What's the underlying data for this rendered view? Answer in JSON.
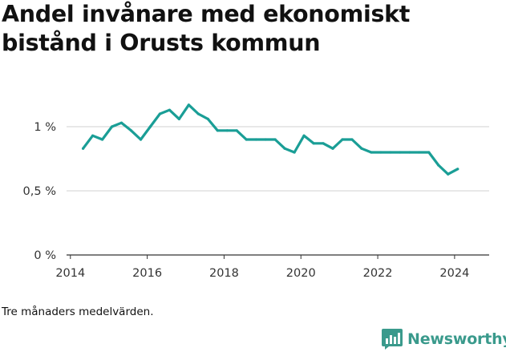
{
  "header": {
    "title": "Andel invånare med ekonomiskt bistånd i Orusts kommun"
  },
  "footer": {
    "note": "Tre månaders medelvärden.",
    "brand_name": "Newsworthy",
    "brand_icon": "bar-chart-logo-icon",
    "brand_color": "#3a9a8c"
  },
  "chart_data": {
    "type": "line",
    "title": "Andel invånare med ekonomiskt bistånd i Orusts kommun",
    "xlabel": "",
    "ylabel": "",
    "ylim": [
      0,
      1.3
    ],
    "xlim": [
      2013.9,
      2024.9
    ],
    "grid": true,
    "line_color": "#1a9e96",
    "x_ticks": [
      {
        "value": 2014,
        "label": "2014"
      },
      {
        "value": 2016,
        "label": "2016"
      },
      {
        "value": 2018,
        "label": "2018"
      },
      {
        "value": 2020,
        "label": "2020"
      },
      {
        "value": 2022,
        "label": "2022"
      },
      {
        "value": 2024,
        "label": "2024"
      }
    ],
    "y_ticks": [
      {
        "value": 0,
        "label": "0 %"
      },
      {
        "value": 0.5,
        "label": "0,5 %"
      },
      {
        "value": 1,
        "label": "1 %"
      }
    ],
    "series": [
      {
        "x": [
          2014.33,
          2014.58,
          2014.83,
          2015.08,
          2015.33,
          2015.58,
          2015.83,
          2016.08,
          2016.33,
          2016.58,
          2016.83,
          2017.08,
          2017.33,
          2017.58,
          2017.83,
          2018.08,
          2018.33,
          2018.58,
          2018.83,
          2019.08,
          2019.33,
          2019.58,
          2019.83,
          2020.08,
          2020.33,
          2020.58,
          2020.83,
          2021.08,
          2021.33,
          2021.58,
          2021.83,
          2022.08,
          2022.33,
          2022.58,
          2022.83,
          2023.08,
          2023.33,
          2023.58,
          2023.83,
          2024.08
        ],
        "values": [
          0.83,
          0.93,
          0.9,
          1.0,
          1.03,
          0.97,
          0.9,
          1.0,
          1.1,
          1.13,
          1.06,
          1.17,
          1.1,
          1.06,
          0.97,
          0.97,
          0.97,
          0.9,
          0.9,
          0.9,
          0.9,
          0.83,
          0.8,
          0.93,
          0.87,
          0.87,
          0.83,
          0.9,
          0.9,
          0.83,
          0.8,
          0.8,
          0.8,
          0.8,
          0.8,
          0.8,
          0.8,
          0.7,
          0.63,
          0.67
        ]
      }
    ]
  }
}
